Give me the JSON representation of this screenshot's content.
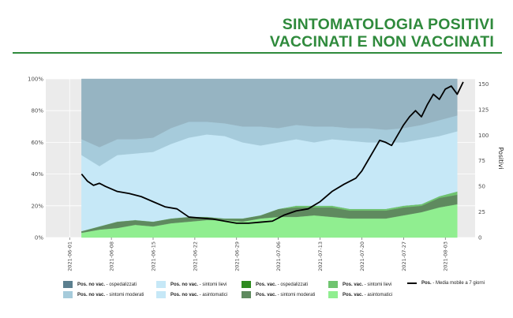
{
  "title_line1": "SINTOMATOLOGIA POSITIVI",
  "title_line2": "VACCINATI E NON VACCINATI",
  "chart_data": {
    "type": "area",
    "y_left_ticks": [
      "0%",
      "20%",
      "40%",
      "60%",
      "80%",
      "100%"
    ],
    "y_right_ticks": [
      "0",
      "25",
      "50",
      "75",
      "100",
      "125",
      "150"
    ],
    "y_right_label": "Positivi",
    "y_right_range": [
      0,
      155
    ],
    "x_tick_labels": [
      "2021-06-01",
      "2021-06-08",
      "2021-06-15",
      "2021-06-22",
      "2021-06-29",
      "2021-07-06",
      "2021-07-13",
      "2021-07-20",
      "2021-07-27",
      "2021-08-03"
    ],
    "x_range": [
      "2021-05-28",
      "2021-08-08"
    ],
    "x": [
      "2021-06-03",
      "2021-06-06",
      "2021-06-09",
      "2021-06-12",
      "2021-06-15",
      "2021-06-18",
      "2021-06-21",
      "2021-06-24",
      "2021-06-27",
      "2021-06-30",
      "2021-07-03",
      "2021-07-06",
      "2021-07-09",
      "2021-07-12",
      "2021-07-15",
      "2021-07-18",
      "2021-07-21",
      "2021-07-24",
      "2021-07-27",
      "2021-07-30",
      "2021-08-02",
      "2021-08-05"
    ],
    "series": [
      {
        "name": "Pos. vac. - asintomatici",
        "color": "#90ee90",
        "values": [
          3,
          5,
          6,
          8,
          7,
          9,
          10,
          11,
          11,
          10,
          12,
          13,
          13,
          14,
          13,
          12,
          12,
          12,
          14,
          16,
          19,
          21
        ]
      },
      {
        "name": "Pos. vac. - sintomi moderati",
        "color": "#5f8a5f",
        "values": [
          1,
          2,
          4,
          3,
          3,
          3,
          3,
          2,
          1,
          2,
          2,
          5,
          6,
          5,
          6,
          5,
          5,
          5,
          5,
          4,
          6,
          6
        ]
      },
      {
        "name": "Pos. vac. - sintomi lievi",
        "color": "#6fc46f",
        "values": [
          0,
          0,
          0,
          0,
          0,
          0,
          0,
          0,
          0,
          0,
          0,
          0,
          1,
          1,
          1,
          1,
          1,
          1,
          1,
          1,
          1,
          2
        ]
      },
      {
        "name": "Pos. vac. - ospedalizzati",
        "color": "#2e8b1f",
        "values": [
          0,
          0,
          0,
          0,
          0,
          0,
          0,
          0,
          0,
          0,
          0,
          0,
          0,
          0,
          0,
          0,
          0,
          0,
          0,
          0,
          0,
          0
        ]
      },
      {
        "name": "Pos. no vac. - asintomatici",
        "color": "#c6e8f7",
        "values": [
          48,
          38,
          42,
          42,
          44,
          47,
          50,
          52,
          52,
          48,
          44,
          42,
          42,
          40,
          42,
          43,
          42,
          42,
          40,
          41,
          38,
          38
        ]
      },
      {
        "name": "Pos. no vac. - sintomi moderati",
        "color": "#a6cbdb",
        "values": [
          10,
          12,
          10,
          9,
          9,
          10,
          10,
          8,
          8,
          10,
          12,
          9,
          9,
          10,
          8,
          8,
          9,
          8,
          9,
          9,
          10,
          10
        ]
      },
      {
        "name": "Pos. no vac. - ospedalizzati",
        "color": "#96b4c2",
        "values": [
          38,
          43,
          38,
          38,
          37,
          31,
          27,
          27,
          28,
          30,
          30,
          31,
          29,
          30,
          30,
          31,
          31,
          32,
          31,
          29,
          26,
          23
        ]
      }
    ],
    "line_series": {
      "name": "Pos. - Media mobile a 7 giorni",
      "color": "#000000",
      "x": [
        "2021-06-03",
        "2021-06-04",
        "2021-06-05",
        "2021-06-06",
        "2021-06-07",
        "2021-06-09",
        "2021-06-11",
        "2021-06-13",
        "2021-06-15",
        "2021-06-17",
        "2021-06-19",
        "2021-06-21",
        "2021-06-23",
        "2021-06-25",
        "2021-06-27",
        "2021-06-29",
        "2021-07-01",
        "2021-07-03",
        "2021-07-05",
        "2021-07-07",
        "2021-07-09",
        "2021-07-11",
        "2021-07-13",
        "2021-07-15",
        "2021-07-17",
        "2021-07-19",
        "2021-07-20",
        "2021-07-21",
        "2021-07-22",
        "2021-07-23",
        "2021-07-24",
        "2021-07-25",
        "2021-07-26",
        "2021-07-27",
        "2021-07-28",
        "2021-07-29",
        "2021-07-30",
        "2021-07-31",
        "2021-08-01",
        "2021-08-02",
        "2021-08-03",
        "2021-08-04",
        "2021-08-05",
        "2021-08-06"
      ],
      "values": [
        62,
        55,
        51,
        53,
        50,
        45,
        43,
        40,
        35,
        30,
        28,
        20,
        19,
        18,
        16,
        14,
        14,
        15,
        16,
        22,
        26,
        28,
        35,
        45,
        52,
        58,
        65,
        75,
        85,
        95,
        93,
        90,
        100,
        110,
        118,
        124,
        118,
        130,
        140,
        135,
        145,
        148,
        140,
        152
      ]
    },
    "legend": [
      {
        "label_bold": "Pos. no vac.",
        "label_rest": " - ospedalizzati",
        "color": "#5b7f8f",
        "kind": "box"
      },
      {
        "label_bold": "Pos. no vac.",
        "label_rest": " - sintomi moderati",
        "color": "#a6cbdb",
        "kind": "box"
      },
      {
        "label_bold": "Pos. no vac.",
        "label_rest": " - sintomi lievi",
        "color": "#c6e8f7",
        "kind": "box"
      },
      {
        "label_bold": "Pos. no vac.",
        "label_rest": " - asintomatici",
        "color": "#c6e8f7",
        "kind": "box"
      },
      {
        "label_bold": "Pos. vac.",
        "label_rest": " - ospedalizzati",
        "color": "#2e8b1f",
        "kind": "box"
      },
      {
        "label_bold": "Pos. vac.",
        "label_rest": " - sintomi moderati",
        "color": "#5f8a5f",
        "kind": "box"
      },
      {
        "label_bold": "Pos. vac.",
        "label_rest": " - sintomi lievi",
        "color": "#6fc46f",
        "kind": "box"
      },
      {
        "label_bold": "Pos. vac.",
        "label_rest": " - asintomatici",
        "color": "#90ee90",
        "kind": "box"
      },
      {
        "label_bold": "Pos.",
        "label_rest": " - Media mobile a 7 giorni",
        "color": "#000000",
        "kind": "line"
      }
    ]
  }
}
